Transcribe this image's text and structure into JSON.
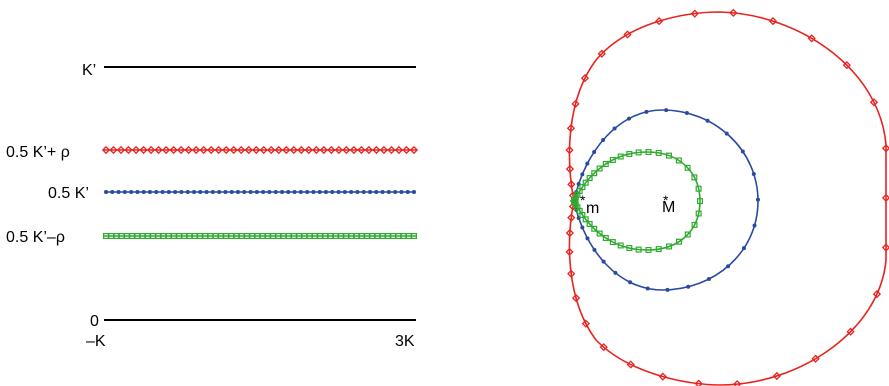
{
  "left_panel": {
    "levels": [
      {
        "label": "K’",
        "series": "K-line",
        "color": "#000000",
        "marker": "none"
      },
      {
        "label": "0.5 K’+ ρ",
        "series": "upper",
        "color": "#e8231f",
        "marker": "diamond"
      },
      {
        "label": "0.5 K’",
        "series": "middle",
        "color": "#2a4aa0",
        "marker": "dot"
      },
      {
        "label": "0.5 K’–ρ",
        "series": "lower",
        "color": "#2faa2f",
        "marker": "square"
      },
      {
        "label": "0",
        "series": "zero-line",
        "color": "#000000",
        "marker": "none"
      }
    ],
    "x_ticks": [
      "–K",
      "3K"
    ]
  },
  "right_panel": {
    "points": [
      {
        "label": "m"
      },
      {
        "label": "M"
      }
    ],
    "curves": [
      {
        "series": "upper",
        "color": "#e8231f",
        "marker": "diamond"
      },
      {
        "series": "middle",
        "color": "#2a4aa0",
        "marker": "dot"
      },
      {
        "series": "lower",
        "color": "#2faa2f",
        "marker": "square"
      }
    ]
  }
}
